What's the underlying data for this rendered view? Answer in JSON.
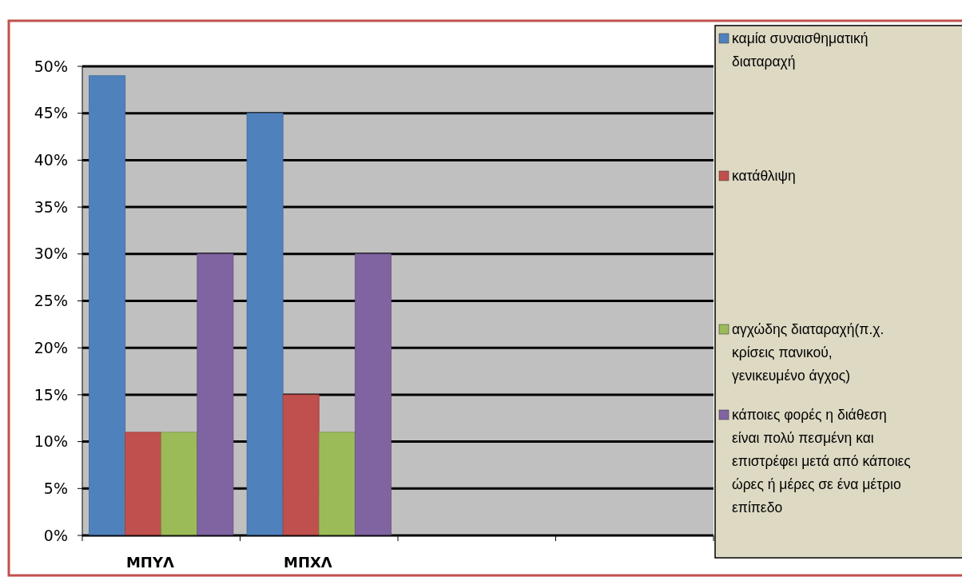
{
  "chart_data": {
    "type": "bar",
    "categories": [
      "ΜΠΥΛ",
      "ΜΠΧΛ",
      null,
      null
    ],
    "series": [
      {
        "name": "καμία συναισθηματική διαταραχή",
        "color": "#4f81bd",
        "values": [
          49,
          45,
          null,
          null
        ]
      },
      {
        "name": "κατάθλιψη",
        "color": "#c0504d",
        "values": [
          11,
          15,
          null,
          null
        ]
      },
      {
        "name": "αγχώδης διαταραχή(π.χ. κρίσεις πανικού, γενικευμένο άγχος)",
        "color": "#9bbb59",
        "values": [
          11,
          11,
          null,
          null
        ]
      },
      {
        "name": "κάποιες φορές η διάθεση είναι πολύ πεσμένη και επιστρέφει μετά από κάποιες ώρες ή μέρες σε ένα μέτριο επίπεδο",
        "color": "#8064a2",
        "values": [
          30,
          30,
          null,
          null
        ]
      }
    ],
    "ylim": [
      0,
      50
    ],
    "yticks": [
      {
        "value": 0,
        "label": "0%"
      },
      {
        "value": 5,
        "label": "5%"
      },
      {
        "value": 10,
        "label": "10%"
      },
      {
        "value": 15,
        "label": "15%"
      },
      {
        "value": 20,
        "label": "20%"
      },
      {
        "value": 25,
        "label": "25%"
      },
      {
        "value": 30,
        "label": "30%"
      },
      {
        "value": 35,
        "label": "35%"
      },
      {
        "value": 40,
        "label": "40%"
      },
      {
        "value": 45,
        "label": "45%"
      },
      {
        "value": 50,
        "label": "50%"
      }
    ],
    "grid": "y",
    "legend": "right"
  }
}
